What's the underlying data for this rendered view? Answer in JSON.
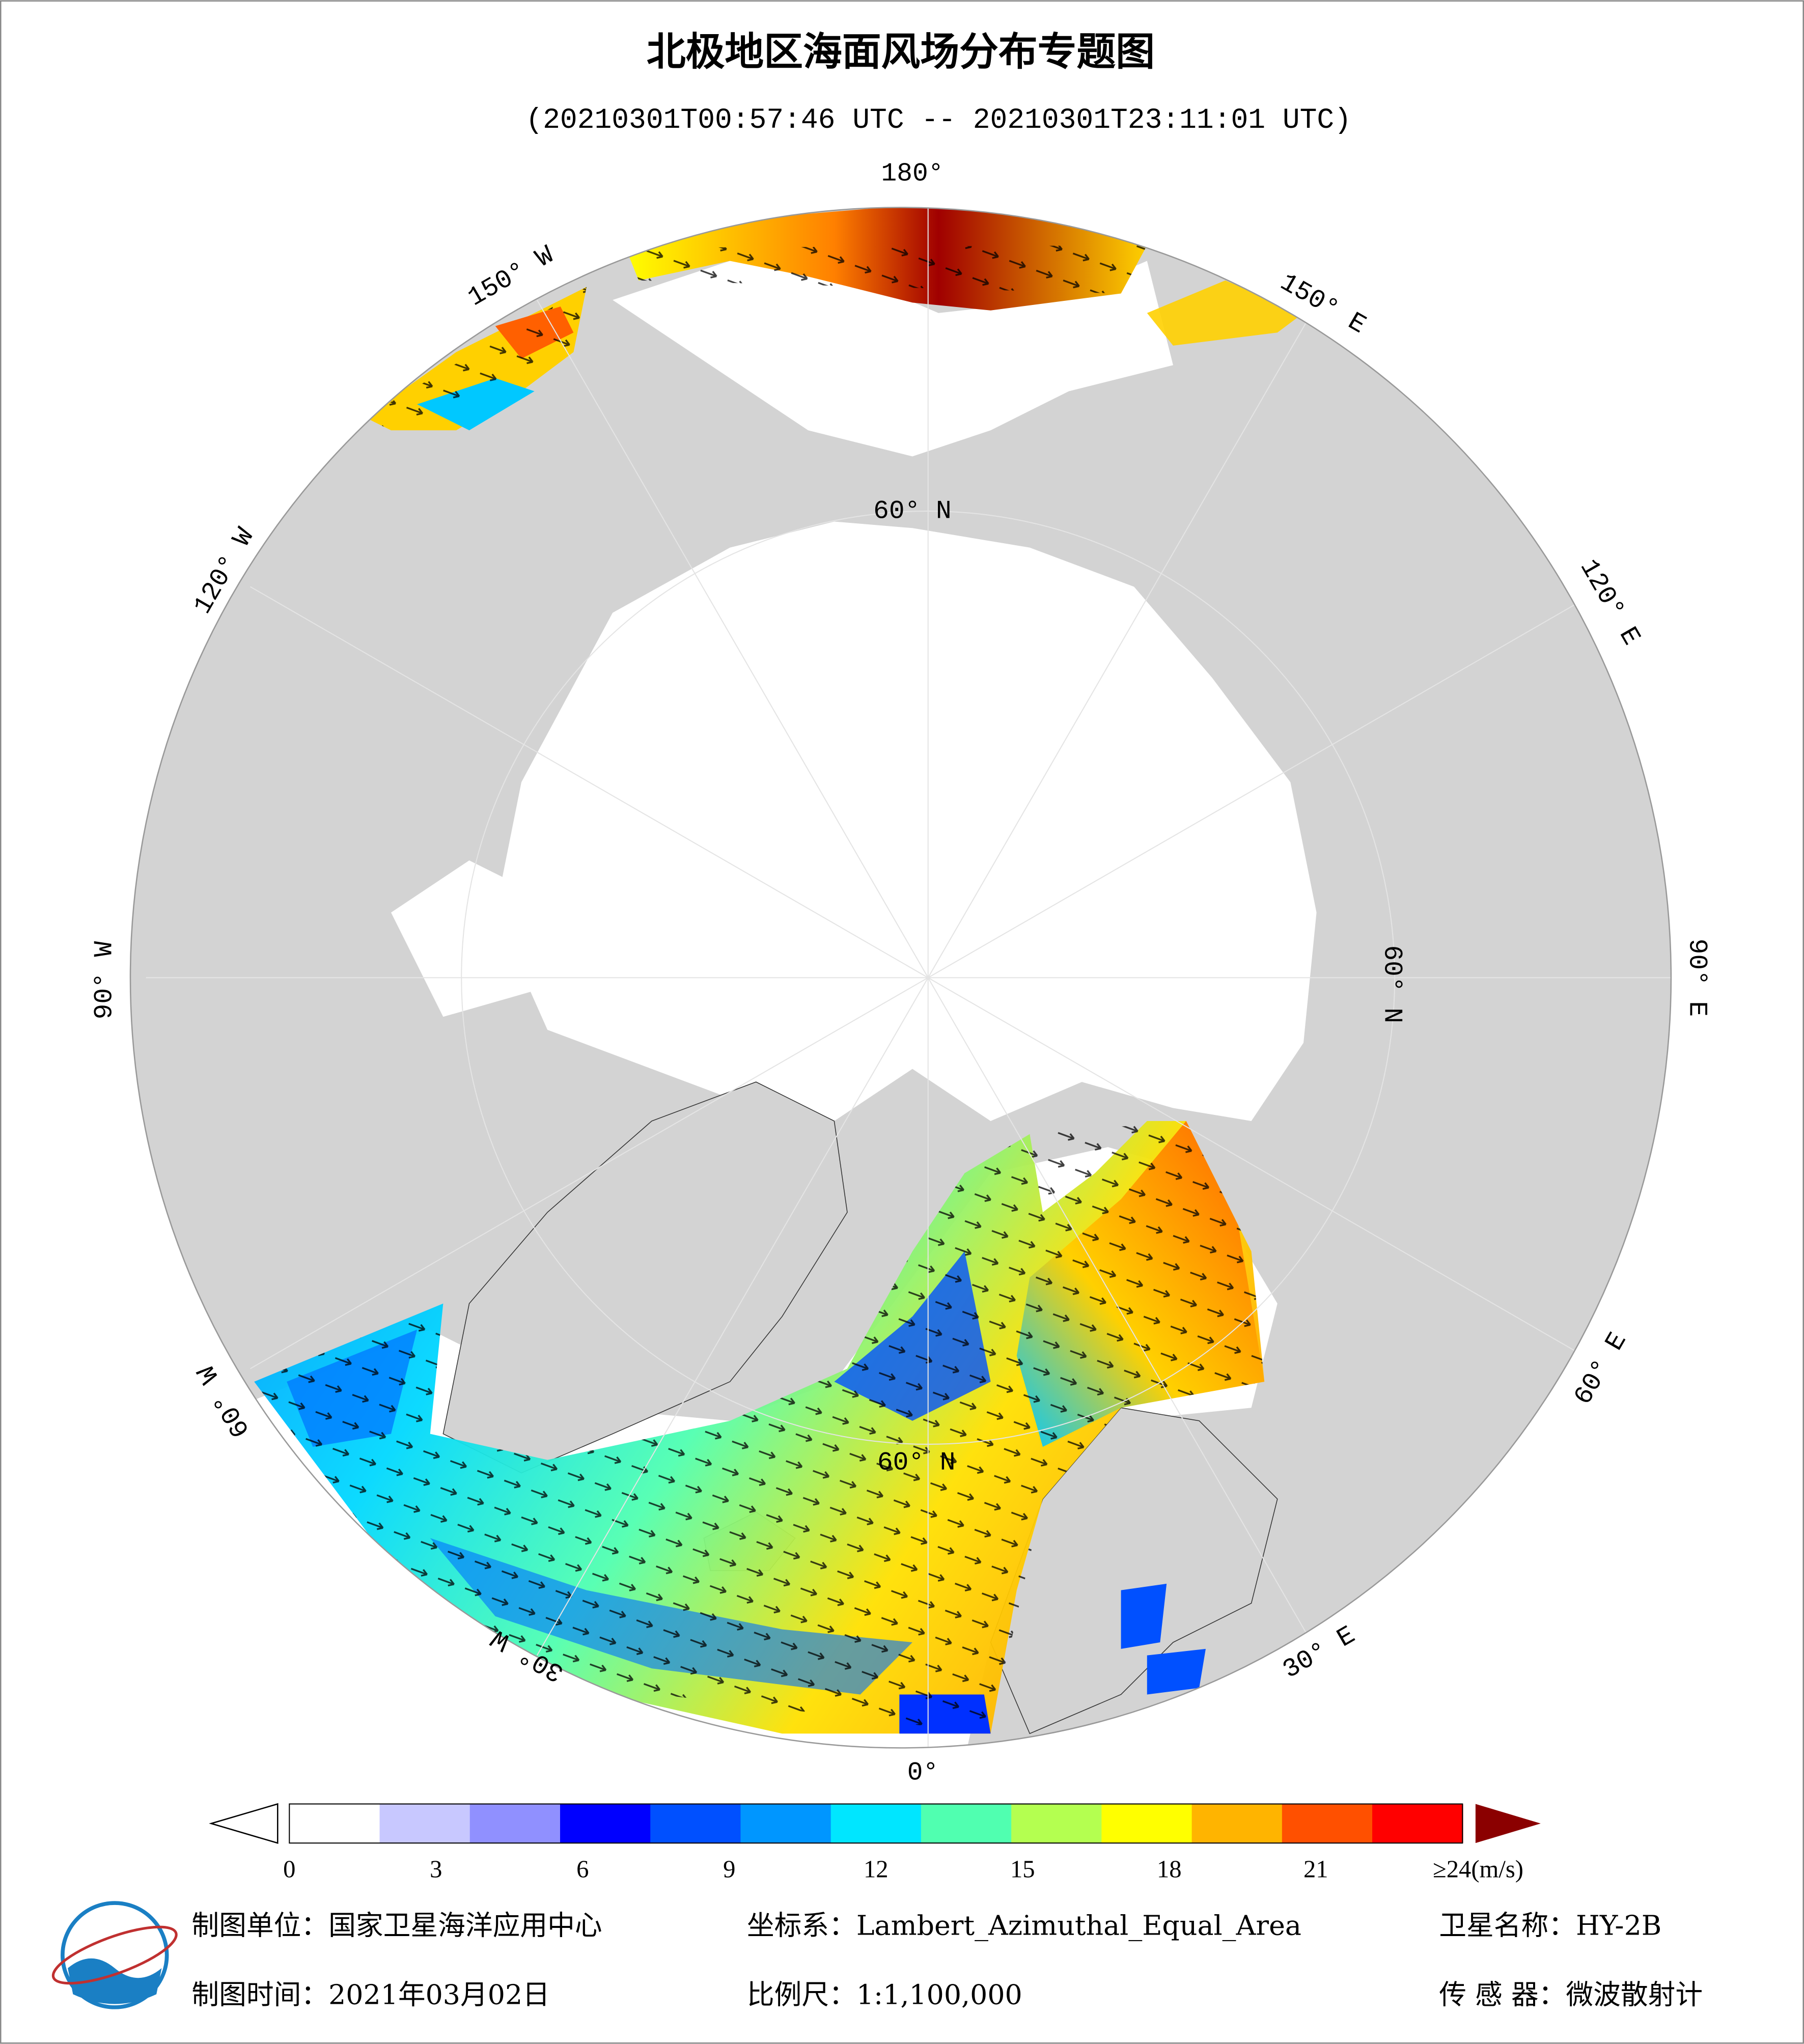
{
  "title": "北极地区海面风场分布专题图",
  "subtitle": "(20210301T00:57:46 UTC -- 20210301T23:11:01 UTC)",
  "graticule": {
    "meridian_labels": [
      "180°",
      "150° E",
      "120° E",
      "90° E",
      "60° E",
      "30° E",
      "0°",
      "30° W",
      "60° W",
      "90° W",
      "120° W",
      "150° W"
    ],
    "parallel_labels": [
      "60° N",
      "60° N",
      "60° N"
    ]
  },
  "colorbar": {
    "range": [
      0,
      24
    ],
    "ticks": [
      0,
      3,
      6,
      9,
      12,
      15,
      18,
      21,
      {
        "value": 24,
        "label": "≥24(m/s)"
      }
    ],
    "colors": [
      "#ffffff",
      "#c8c8ff",
      "#9090ff",
      "#0000ff",
      "#0050ff",
      "#0096ff",
      "#00e6ff",
      "#50ffb0",
      "#b4ff50",
      "#ffff00",
      "#ffb400",
      "#ff5000",
      "#ff0000",
      "#8b0000"
    ]
  },
  "footer": {
    "agency": "制图单位：国家卫星海洋应用中心",
    "projection": "坐标系：Lambert_Azimuthal_Equal_Area",
    "satellite": "卫星名称：HY-2B",
    "date": "制图时间：2021年03月02日",
    "scale": "比例尺：1:1,100,000",
    "sensor": "传 感 器：微波散射计"
  }
}
